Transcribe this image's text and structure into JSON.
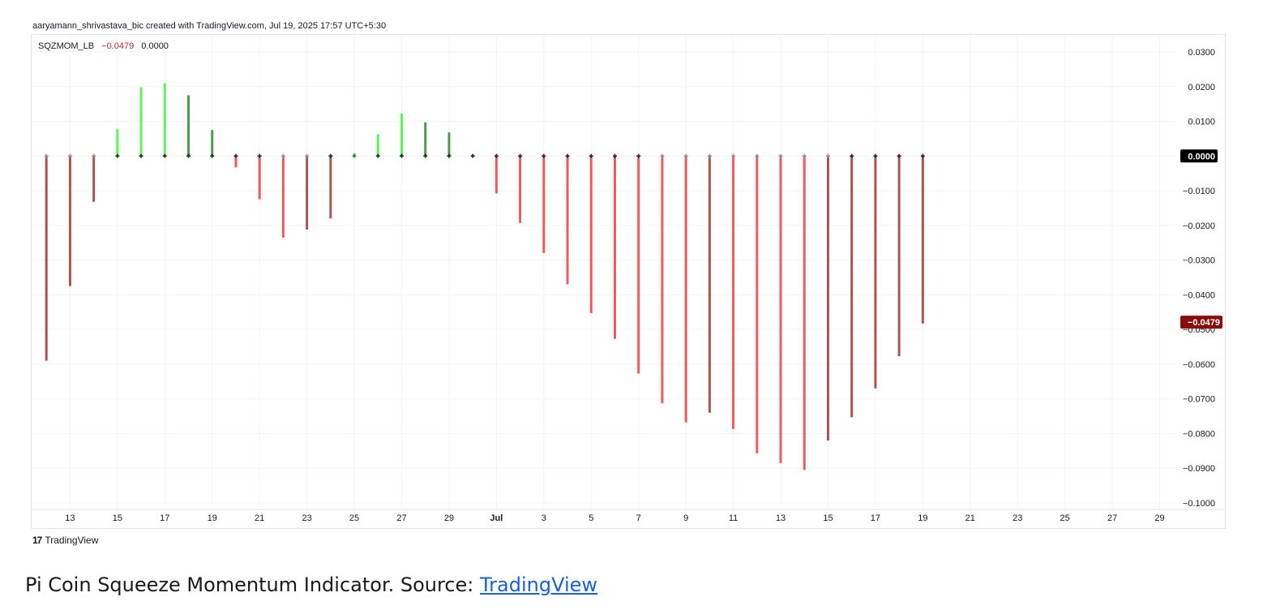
{
  "header": {
    "attribution": "aaryamann_shrivastava_bic created with TradingView.com, Jul 19, 2025 17:57 UTC+5:30"
  },
  "legend": {
    "name": "SQZMOM_LB",
    "value": "−0.0479",
    "value2": "0.0000"
  },
  "footer": {
    "logo_text": "TradingView",
    "logo_mark": "17"
  },
  "caption": {
    "text": "Pi Coin Squeeze Momentum Indicator. Source: ",
    "link": "TradingView"
  },
  "colors": {
    "bright_green": "#5cf25c",
    "dark_green": "#4c9a4c",
    "bright_red": "#f05a5a",
    "dark_red": "#a85454",
    "zero_badge": "#000000",
    "last_badge": "#880e0e",
    "grid": "#f0f3fa"
  },
  "chart_data": {
    "type": "bar",
    "ylim": [
      -0.1,
      0.03
    ],
    "yticks": [
      "0.0300",
      "0.0200",
      "0.0100",
      "0.0000",
      "−0.0100",
      "−0.0200",
      "−0.0300",
      "−0.0400",
      "−0.0500",
      "−0.0600",
      "−0.0700",
      "−0.0800",
      "−0.0900",
      "−0.1000"
    ],
    "ytick_values": [
      0.03,
      0.02,
      0.01,
      0,
      -0.01,
      -0.02,
      -0.03,
      -0.04,
      -0.05,
      -0.06,
      -0.07,
      -0.08,
      -0.09,
      -0.1
    ],
    "xticks": [
      "13",
      "15",
      "17",
      "19",
      "21",
      "23",
      "25",
      "27",
      "29",
      "Jul",
      "3",
      "5",
      "7",
      "9",
      "11",
      "13",
      "15",
      "17",
      "19",
      "21",
      "23",
      "25",
      "27",
      "29"
    ],
    "xtick_index": [
      1,
      3,
      5,
      7,
      9,
      11,
      13,
      15,
      17,
      19,
      21,
      23,
      25,
      27,
      29,
      31,
      33,
      35,
      37,
      39,
      41,
      43,
      45,
      47
    ],
    "index_range": [
      -0.5,
      48.5
    ],
    "values": [
      -0.059,
      -0.0375,
      -0.0132,
      0.0078,
      0.0198,
      0.021,
      0.0175,
      0.0075,
      -0.0033,
      -0.0125,
      -0.0235,
      -0.0212,
      -0.018,
      0.0008,
      0.0063,
      0.0122,
      0.0097,
      0.0068,
      0.0003,
      -0.0108,
      -0.0193,
      -0.028,
      -0.037,
      -0.0453,
      -0.0527,
      -0.0627,
      -0.0713,
      -0.0768,
      -0.074,
      -0.0787,
      -0.0857,
      -0.0885,
      -0.0905,
      -0.082,
      -0.0753,
      -0.067,
      -0.0577,
      -0.0483
    ],
    "bar_colors": [
      "dark_red",
      "dark_red",
      "dark_red",
      "bright_green",
      "bright_green",
      "bright_green",
      "dark_green",
      "dark_green",
      "bright_red",
      "bright_red",
      "bright_red",
      "dark_red",
      "dark_red",
      "bright_green",
      "bright_green",
      "bright_green",
      "dark_green",
      "dark_green",
      "dark_red",
      "bright_red",
      "bright_red",
      "bright_red",
      "bright_red",
      "bright_red",
      "bright_red",
      "bright_red",
      "bright_red",
      "bright_red",
      "dark_red",
      "bright_red",
      "bright_red",
      "bright_red",
      "bright_red",
      "dark_red",
      "dark_red",
      "dark_red",
      "dark_red",
      "dark_red"
    ],
    "dot_colors": [
      "gray",
      "gray",
      "gray",
      "black",
      "black",
      "black",
      "black",
      "black",
      "black",
      "black",
      "gray",
      "gray",
      "black",
      "green",
      "black",
      "black",
      "black",
      "black",
      "black",
      "black",
      "black",
      "black",
      "black",
      "black",
      "black",
      "black",
      "gray",
      "gray",
      "gray",
      "gray",
      "gray",
      "gray",
      "gray",
      "gray",
      "black",
      "black",
      "black",
      "black"
    ],
    "zero_badge": "0.0000",
    "last_badge": "−0.0479",
    "last_value": -0.0479
  }
}
